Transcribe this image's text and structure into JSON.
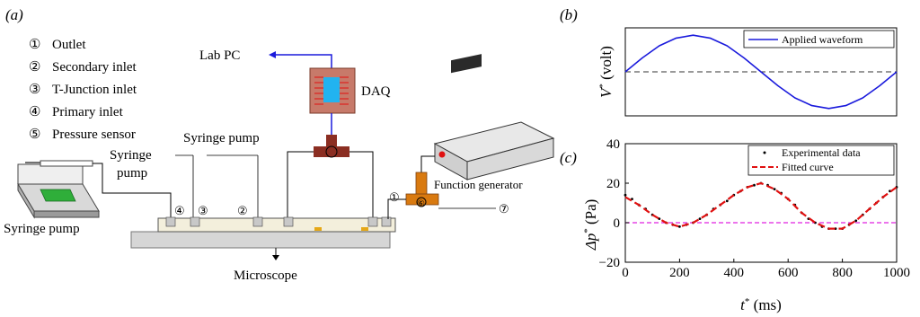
{
  "panel_a": {
    "label": "(a)",
    "legend": [
      {
        "num": "①",
        "text": "Outlet"
      },
      {
        "num": "②",
        "text": "Secondary inlet"
      },
      {
        "num": "③",
        "text": "T-Junction inlet"
      },
      {
        "num": "④",
        "text": "Primary inlet"
      },
      {
        "num": "⑤",
        "text": "Pressure sensor"
      }
    ],
    "lab_pc": "Lab PC",
    "daq": "DAQ",
    "syringe_pump_top": "Syringe pump",
    "syringe_pump_mid_1": "Syringe",
    "syringe_pump_mid_2": "pump",
    "syringe_pump_left": "Syringe pump",
    "function_generator": "Function generator",
    "microscope": "Microscope",
    "port_4": "④",
    "port_3": "③",
    "port_2": "②",
    "port_1": "①",
    "port_6": "⑥",
    "port_7": "⑦"
  },
  "panel_b": {
    "label": "(b)",
    "ylabel_main": "V",
    "ylabel_sup": "*",
    "ylabel_unit": " (volt)",
    "legend": "Applied waveform"
  },
  "panel_c": {
    "label": "(c)",
    "ylabel_main": "Δp",
    "ylabel_sup": "*",
    "ylabel_unit": " (Pa)",
    "xlabel_main": "t",
    "xlabel_sup": "*",
    "xlabel_unit": " (ms)",
    "legend_points": "Experimental data",
    "legend_fit": "Fitted curve",
    "xticks": [
      "0",
      "200",
      "400",
      "600",
      "800",
      "1000"
    ],
    "yticks": [
      "40",
      "20",
      "0",
      "−20"
    ]
  },
  "colors": {
    "wave": "#1a1adc",
    "fit": "#e01010",
    "zero": "#e020e0",
    "wire": "#1a1adc",
    "daq_box": "#c77a6a",
    "daq_inner": "#22b3f0",
    "tee": "#8b2e22",
    "fg_tee": "#d97a10"
  },
  "chart_data": [
    {
      "type": "line",
      "x": [
        0,
        62.5,
        125,
        187.5,
        250,
        312.5,
        375,
        437.5,
        500,
        562.5,
        625,
        687.5,
        750,
        812.5,
        875,
        937.5,
        1000
      ],
      "series": [
        {
          "name": "Applied waveform",
          "values": [
            0,
            0.38,
            0.71,
            0.92,
            1.0,
            0.92,
            0.71,
            0.38,
            0,
            -0.38,
            -0.71,
            -0.92,
            -1.0,
            -0.92,
            -0.71,
            -0.38,
            0
          ]
        }
      ],
      "xlim": [
        0,
        1000
      ],
      "ylim": [
        -1.2,
        1.2
      ],
      "reference_line": 0,
      "grid": false,
      "legend_position": "top-right"
    },
    {
      "type": "scatter",
      "xlabel": "t* (ms)",
      "ylabel": "Δp* (Pa)",
      "xlim": [
        0,
        1000
      ],
      "ylim": [
        -20,
        40
      ],
      "xticks": [
        0,
        200,
        400,
        600,
        800,
        1000
      ],
      "yticks": [
        -20,
        0,
        20,
        40
      ],
      "grid": false,
      "legend_position": "top-right",
      "series": [
        {
          "name": "Fitted curve",
          "style": "dashed",
          "x": [
            0,
            50,
            100,
            150,
            200,
            250,
            300,
            350,
            400,
            450,
            500,
            550,
            600,
            650,
            700,
            750,
            800,
            850,
            900,
            950,
            1000
          ],
          "values": [
            13,
            9,
            4,
            0,
            -2,
            0,
            4,
            9,
            14,
            18,
            20,
            17,
            12,
            5,
            0,
            -3,
            -3,
            1,
            7,
            13,
            18
          ]
        },
        {
          "name": "Experimental data",
          "x": [
            0,
            25,
            50,
            75,
            100,
            125,
            150,
            175,
            200,
            225,
            250,
            275,
            300,
            325,
            350,
            375,
            400,
            425,
            450,
            475,
            500,
            525,
            550,
            575,
            600,
            625,
            650,
            675,
            700,
            725,
            750,
            775,
            800,
            825,
            850,
            875,
            900,
            925,
            950,
            975,
            1000
          ],
          "values": [
            14,
            12,
            9,
            7,
            4,
            2,
            0,
            -1,
            -2,
            -1,
            0,
            2,
            4,
            7,
            9,
            11,
            14,
            16,
            18,
            19,
            20,
            19,
            17,
            15,
            12,
            9,
            5,
            2,
            0,
            -2,
            -3,
            -3,
            -3,
            -1,
            1,
            4,
            7,
            10,
            13,
            16,
            18
          ]
        }
      ],
      "reference_line": 0
    }
  ]
}
